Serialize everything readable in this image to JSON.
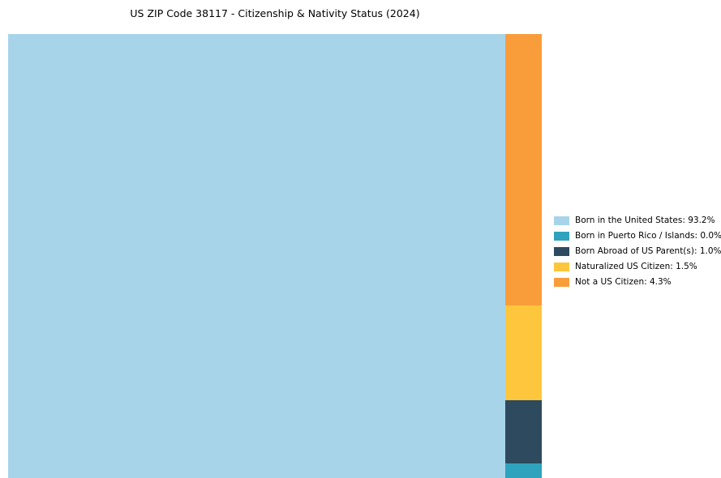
{
  "title": "US ZIP Code 38117 - Citizenship & Nativity Status (2024)",
  "chart_data": {
    "type": "treemap",
    "title": "US ZIP Code 38117 - Citizenship & Nativity Status (2024)",
    "legend_position": "right",
    "segments": [
      {
        "label": "Born in the United States",
        "value": 93.2,
        "value_display": "93.2%",
        "color": "#A8D4EA"
      },
      {
        "label": "Born in Puerto Rico / Islands",
        "value": 0.0,
        "value_display": "0.0%",
        "color": "#2FA2BD"
      },
      {
        "label": "Born Abroad of US Parent(s)",
        "value": 1.0,
        "value_display": "1.0%",
        "color": "#2E4A5E"
      },
      {
        "label": "Naturalized US Citizen",
        "value": 1.5,
        "value_display": "1.5%",
        "color": "#FEC63D"
      },
      {
        "label": "Not a US Citizen",
        "value": 4.3,
        "value_display": "4.3%",
        "color": "#F99D3B"
      }
    ],
    "column_order": [
      "Not a US Citizen",
      "Naturalized US Citizen",
      "Born Abroad of US Parent(s)",
      "Born in Puerto Rico / Islands"
    ]
  }
}
